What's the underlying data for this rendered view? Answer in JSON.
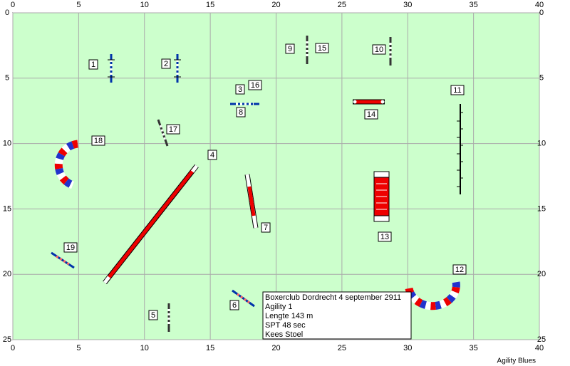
{
  "axes": {
    "xticks": [
      0,
      5,
      10,
      15,
      20,
      25,
      30,
      35,
      40
    ],
    "yticks": [
      0,
      5,
      10,
      15,
      20,
      25
    ]
  },
  "obstacles": [
    "1",
    "2",
    "3",
    "4",
    "5",
    "6",
    "7",
    "8",
    "9",
    "10",
    "11",
    "12",
    "13",
    "14",
    "15",
    "16",
    "17",
    "18",
    "19"
  ],
  "info": [
    "Boxerclub Dordrecht 4 september 2911",
    "Agility 1",
    "Lengte 143 m",
    "SPT 48 sec",
    "Kees Stoel"
  ],
  "footer": "Agility Blues"
}
